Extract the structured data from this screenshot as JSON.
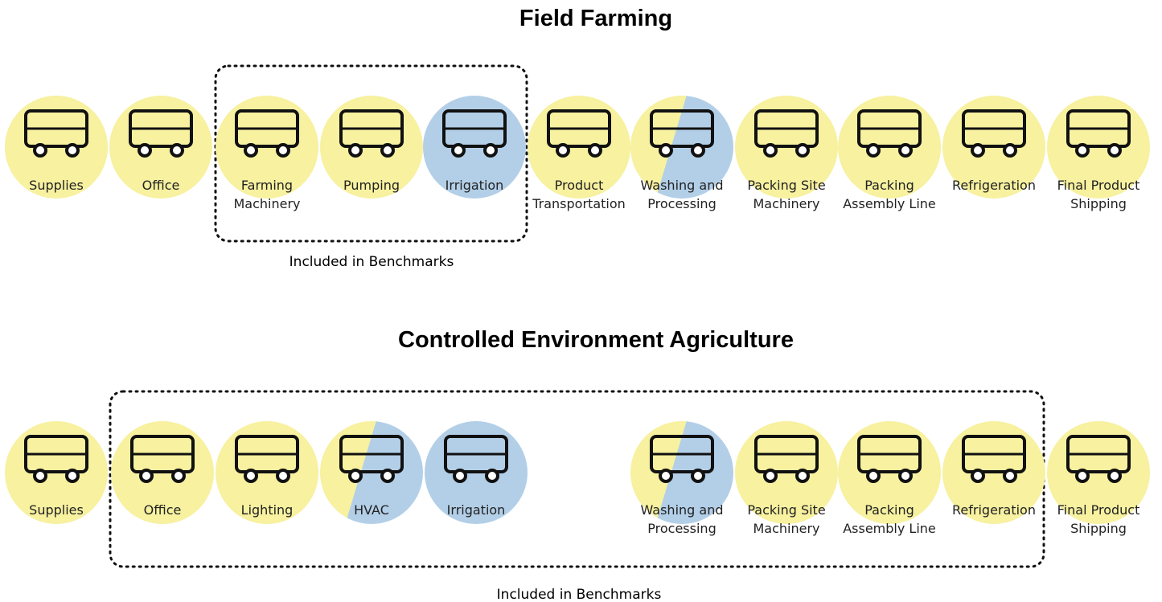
{
  "sections": [
    {
      "title": "Field Farming",
      "benchmark": "Included in Benchmarks",
      "nodes": [
        {
          "label": [
            "Supplies"
          ],
          "color": "#f7f1a0"
        },
        {
          "label": [
            "Office"
          ],
          "color": "#f7f1a0"
        },
        {
          "label": [
            "Farming",
            "Machinery"
          ],
          "color": "#f7f1a0"
        },
        {
          "label": [
            "Pumping"
          ],
          "color": "#f7f1a0"
        },
        {
          "label": [
            "Irrigation"
          ],
          "color": "#b3cfe8"
        },
        {
          "label": [
            "Product",
            "Transportation"
          ],
          "color": "#f7f1a0"
        },
        {
          "label": [
            "Washing and",
            "Processing"
          ],
          "color": "#f7f1a0",
          "color2": "#b3cfe8"
        },
        {
          "label": [
            "Packing Site",
            "Machinery"
          ],
          "color": "#f7f1a0"
        },
        {
          "label": [
            "Packing",
            "Assembly Line"
          ],
          "color": "#f7f1a0"
        },
        {
          "label": [
            "Refrigeration"
          ],
          "color": "#f7f1a0"
        },
        {
          "label": [
            "Final Product",
            "Shipping"
          ],
          "color": "#f7f1a0"
        }
      ]
    },
    {
      "title": "Controlled Environment Agriculture",
      "benchmark": "Included in Benchmarks",
      "nodes": [
        {
          "label": [
            "Supplies"
          ],
          "color": "#f7f1a0"
        },
        {
          "label": [
            "Office"
          ],
          "color": "#f7f1a0"
        },
        {
          "label": [
            "Lighting"
          ],
          "color": "#f7f1a0"
        },
        {
          "label": [
            "HVAC"
          ],
          "color": "#f7f1a0",
          "color2": "#b3cfe8"
        },
        {
          "label": [
            "Irrigation"
          ],
          "color": "#b3cfe8"
        },
        {
          "label": [
            "Washing and",
            "Processing"
          ],
          "color": "#f7f1a0",
          "color2": "#b3cfe8"
        },
        {
          "label": [
            "Packing Site",
            "Machinery"
          ],
          "color": "#f7f1a0"
        },
        {
          "label": [
            "Packing",
            "Assembly Line"
          ],
          "color": "#f7f1a0"
        },
        {
          "label": [
            "Refrigeration"
          ],
          "color": "#f7f1a0"
        },
        {
          "label": [
            "Final Product",
            "Shipping"
          ],
          "color": "#f7f1a0"
        }
      ]
    }
  ]
}
